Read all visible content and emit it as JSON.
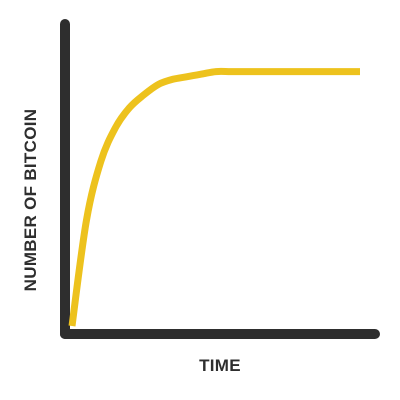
{
  "chart_data": {
    "type": "line",
    "title": "",
    "xlabel": "TIME",
    "ylabel": "NUMBER OF BITCOIN",
    "show_ticks": false,
    "grid": false,
    "xlim": [
      0,
      1
    ],
    "ylim": [
      0,
      1
    ],
    "series": [
      {
        "color": "#EDC21D",
        "x": [
          0,
          0.05,
          0.1,
          0.15,
          0.2,
          0.25,
          0.3,
          0.35,
          0.4,
          0.45,
          0.5,
          0.55,
          0.6,
          0.65,
          0.7,
          0.75,
          0.8,
          0.85,
          0.9,
          0.95,
          1
        ],
        "y": [
          0,
          0.41,
          0.64,
          0.77,
          0.85,
          0.9,
          0.94,
          0.96,
          0.97,
          0.98,
          0.99,
          0.99,
          0.99,
          0.99,
          0.99,
          0.99,
          0.99,
          0.99,
          0.99,
          0.99,
          0.99
        ]
      }
    ],
    "colors": {
      "axis": "#2E2E2E",
      "line": "#EDC21D"
    }
  }
}
